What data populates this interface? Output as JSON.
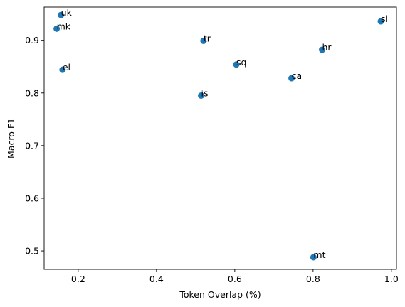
{
  "chart_data": {
    "type": "scatter",
    "title": "",
    "xlabel": "Token Overlap (%)",
    "ylabel": "Macro F1",
    "xlim": [
      0.113,
      1.013
    ],
    "ylim": [
      0.465,
      0.963
    ],
    "xticks": [
      0.2,
      0.4,
      0.6,
      0.8,
      1.0
    ],
    "xtick_labels": [
      "0.2",
      "0.4",
      "0.6",
      "0.8",
      "1.0"
    ],
    "yticks": [
      0.5,
      0.6,
      0.7,
      0.8,
      0.9
    ],
    "ytick_labels": [
      "0.5",
      "0.6",
      "0.7",
      "0.8",
      "0.9"
    ],
    "grid": false,
    "marker_color": "#1f77b4",
    "points": [
      {
        "label": "uk",
        "x": 0.156,
        "y": 0.948
      },
      {
        "label": "mk",
        "x": 0.145,
        "y": 0.922
      },
      {
        "label": "el",
        "x": 0.16,
        "y": 0.844
      },
      {
        "label": "tr",
        "x": 0.52,
        "y": 0.899
      },
      {
        "label": "is",
        "x": 0.514,
        "y": 0.795
      },
      {
        "label": "sq",
        "x": 0.604,
        "y": 0.854
      },
      {
        "label": "ca",
        "x": 0.745,
        "y": 0.828
      },
      {
        "label": "hr",
        "x": 0.823,
        "y": 0.882
      },
      {
        "label": "sl",
        "x": 0.973,
        "y": 0.936
      },
      {
        "label": "mt",
        "x": 0.801,
        "y": 0.488
      }
    ]
  }
}
